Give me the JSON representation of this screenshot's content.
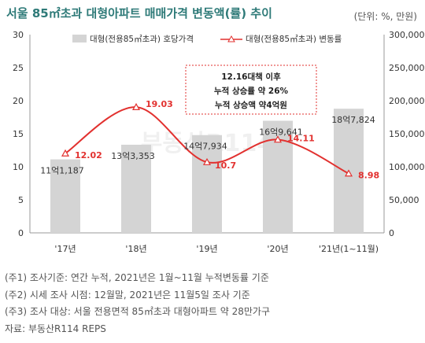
{
  "title": "서울 85㎡초과 대형아파트 매매가격 변동액(률) 추이",
  "unit_label": "(단위: %, 만원)",
  "legend": {
    "bar_label": "대형(전용85㎡초과) 호당가격",
    "line_label": "대형(전용85㎡초과) 변동률"
  },
  "annotation_lines": [
    "12.16대책 이후",
    "누적 상승률 약 26%",
    "누적 상승액 약4억원"
  ],
  "watermark": "부동산R114",
  "colors": {
    "bar": "#d4d4d4",
    "line": "#e2312f",
    "annotation_border": "#e2312f",
    "title": "#2e7a78",
    "axis_text": "#333333"
  },
  "chart_data": {
    "type": "bar",
    "categories": [
      "'17년",
      "'18년",
      "'19년",
      "'20년",
      "'21년(1~11월)"
    ],
    "bar_values": [
      111187,
      133353,
      147934,
      169641,
      187824
    ],
    "bar_labels": [
      "11억1,187",
      "13억3,353",
      "14억7,934",
      "16억9,641",
      "18억7,824"
    ],
    "line_values": [
      12.02,
      19.03,
      10.7,
      14.11,
      8.98
    ],
    "line_labels": [
      "12.02",
      "19.03",
      "10.7",
      "14.11",
      "8.98"
    ],
    "left_axis": {
      "min": 0,
      "max": 30,
      "ticks": [
        "0",
        "5",
        "10",
        "15",
        "20",
        "25",
        "30"
      ]
    },
    "right_axis": {
      "min": 0,
      "max": 300000,
      "ticks": [
        "0",
        "50,000",
        "100,000",
        "150,000",
        "200,000",
        "250,000",
        "300,000"
      ]
    },
    "grid": false,
    "legend_position": "top"
  },
  "notes": [
    "(주1) 조사기준: 연간 누적, 2021년은 1월~11월 누적변동률 기준",
    "(주2) 시세 조사 시점: 12월말, 2021년은 11월5일 조사 기준",
    "(주3) 조사 대상: 서울 전용면적 85㎡초과 대형아파트 약 28만가구",
    "자료: 부동산R114 REPS"
  ]
}
